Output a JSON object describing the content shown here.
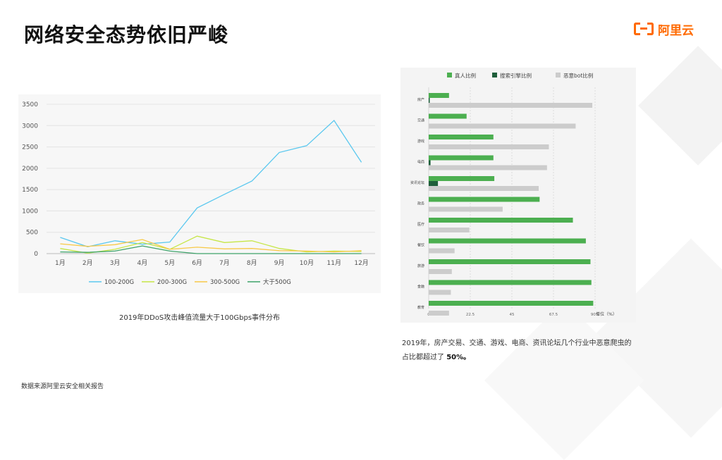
{
  "slide": {
    "title": "网络安全态势依旧严峻",
    "logo_text": "阿里云",
    "left_caption": "2019年DDoS攻击峰值流量大于100Gbps事件分布",
    "right_caption_main": "2019年，房产交易、交通、游戏、电商、资讯论坛几个行业中恶意爬虫的占比都超过了",
    "right_caption_bold": "50%。",
    "footer": "数据来源阿里云安全相关报告"
  },
  "colors": {
    "brand": "#ff6a00",
    "line_100_200": "#5bc8ef",
    "line_200_300": "#c6e646",
    "line_300_500": "#f7c948",
    "line_gt500": "#3ea36a",
    "bar_human": "#4caf50",
    "bar_search": "#1e5e3a",
    "bar_bad_bot": "#cccccc"
  },
  "chart_data": [
    {
      "type": "line",
      "title": "",
      "xlabel": "",
      "ylabel": "",
      "categories": [
        "1月",
        "2月",
        "3月",
        "4月",
        "5月",
        "6月",
        "7月",
        "8月",
        "9月",
        "10月",
        "11月",
        "12月"
      ],
      "ylim": [
        0,
        3500
      ],
      "yticks": [
        0,
        500,
        1000,
        1500,
        2000,
        2500,
        3000,
        3500
      ],
      "grid": true,
      "legend": "bottom",
      "series": [
        {
          "name": "100-200G",
          "color": "#5bc8ef",
          "values": [
            380,
            160,
            300,
            220,
            270,
            1070,
            1390,
            1700,
            2370,
            2530,
            3120,
            2140
          ]
        },
        {
          "name": "200-300G",
          "color": "#c6e646",
          "values": [
            120,
            10,
            100,
            260,
            100,
            410,
            260,
            300,
            120,
            40,
            60,
            50
          ]
        },
        {
          "name": "300-500G",
          "color": "#f7c948",
          "values": [
            230,
            170,
            210,
            330,
            100,
            150,
            110,
            120,
            70,
            60,
            40,
            70
          ]
        },
        {
          "name": "大于500G",
          "color": "#3ea36a",
          "values": [
            40,
            30,
            60,
            180,
            60,
            0,
            0,
            0,
            0,
            0,
            0,
            0
          ]
        }
      ]
    },
    {
      "type": "bar",
      "orientation": "horizontal",
      "title": "",
      "xlabel": "单位（%）",
      "xlim": [
        0,
        90
      ],
      "xticks": [
        "0",
        "22.5",
        "45",
        "67.5",
        "90%"
      ],
      "grid": true,
      "legend": "top",
      "categories": [
        "房产",
        "交通",
        "游戏",
        "电商",
        "资讯论坛",
        "政务",
        "医疗",
        "餐饮",
        "旅游",
        "金融",
        "教育"
      ],
      "series": [
        {
          "name": "真人比例",
          "color": "#4caf50",
          "values": [
            11,
            20.5,
            35,
            35,
            35.5,
            60,
            78,
            85,
            87.5,
            88,
            89
          ]
        },
        {
          "name": "搜索引擎比例",
          "color": "#1e5e3a",
          "values": [
            0.5,
            0,
            0,
            1,
            5,
            0,
            0,
            0,
            0,
            0,
            0
          ]
        },
        {
          "name": "恶意bot比例",
          "color": "#cccccc",
          "values": [
            88.5,
            79.5,
            65,
            64,
            59.5,
            40,
            22,
            14,
            12.5,
            12,
            11
          ]
        }
      ]
    }
  ]
}
